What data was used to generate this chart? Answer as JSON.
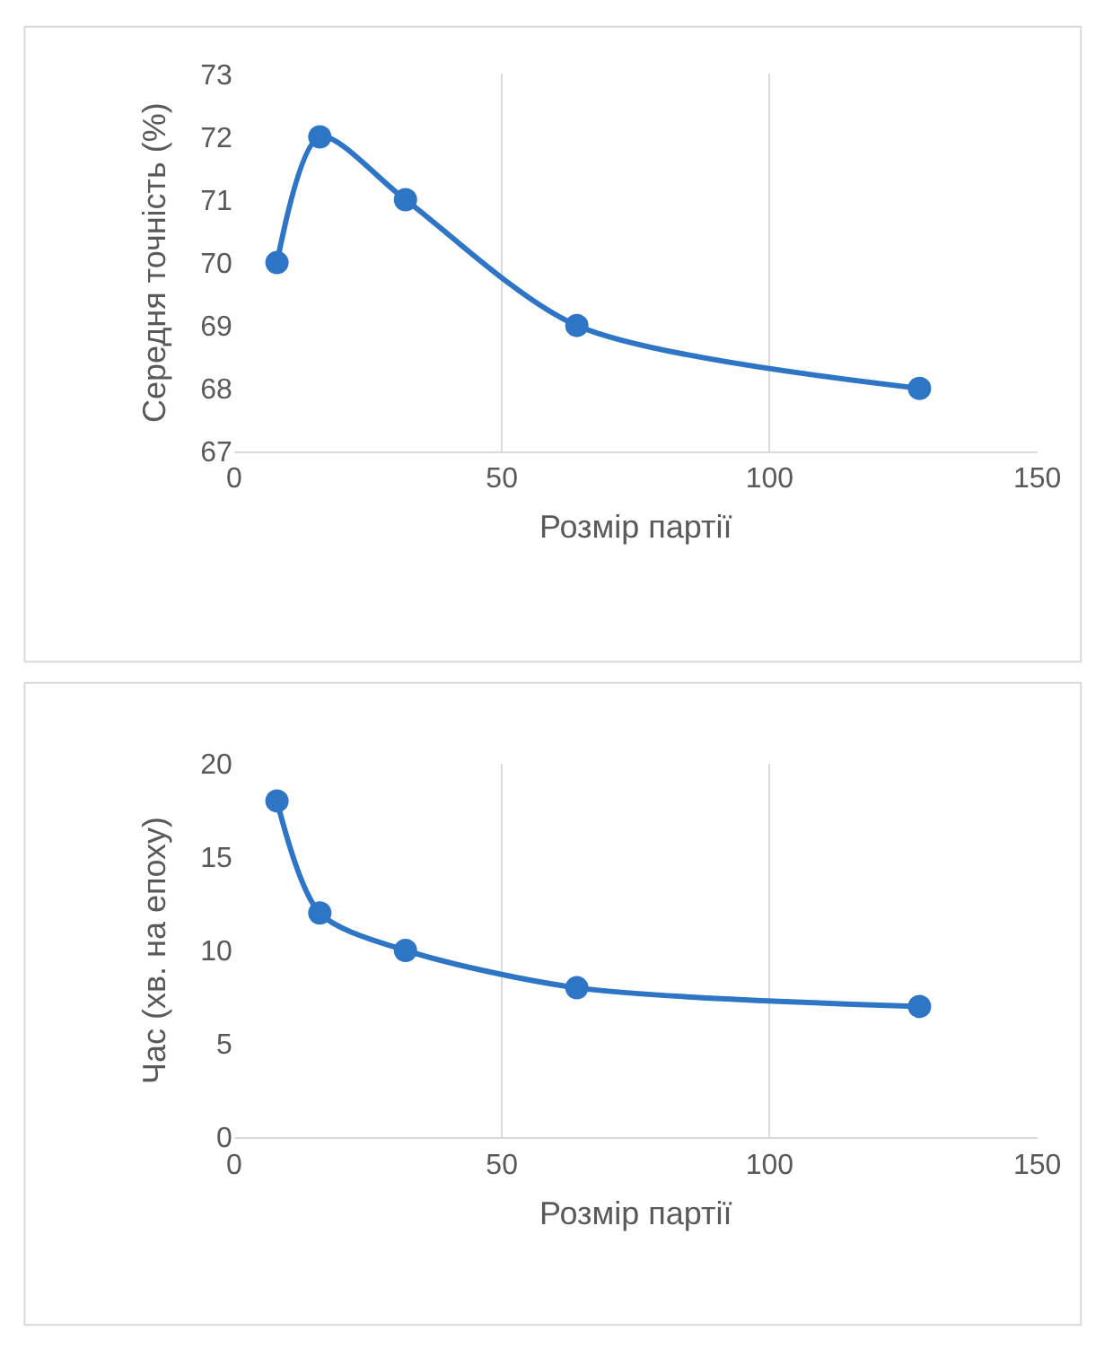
{
  "chart_data": [
    {
      "type": "line",
      "xlabel": "Розмір партії",
      "ylabel": "Середня точність (%)",
      "x": [
        8,
        16,
        32,
        64,
        128
      ],
      "series": [
        {
          "color": "#2e75c6",
          "values": [
            70,
            72,
            71,
            69,
            68
          ]
        }
      ],
      "xlim": [
        0,
        150
      ],
      "xticks": [
        0,
        50,
        100,
        150
      ],
      "ylim": [
        67,
        73
      ],
      "yticks": [
        67,
        68,
        69,
        70,
        71,
        72,
        73
      ],
      "grid": "x",
      "marker": "circle",
      "line_style": "solid"
    },
    {
      "type": "line",
      "xlabel": "Розмір партії",
      "ylabel": "Час (хв. на епоху)",
      "x": [
        8,
        16,
        32,
        64,
        128
      ],
      "series": [
        {
          "color": "#2e75c6",
          "values": [
            18,
            12,
            10,
            8,
            7
          ]
        }
      ],
      "xlim": [
        0,
        150
      ],
      "xticks": [
        0,
        50,
        100,
        150
      ],
      "ylim": [
        0,
        20
      ],
      "yticks": [
        0,
        5,
        10,
        15,
        20
      ],
      "grid": "x",
      "marker": "circle",
      "line_style": "solid"
    }
  ]
}
